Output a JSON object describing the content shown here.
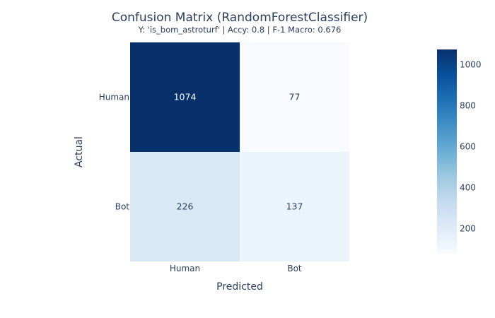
{
  "chart_data": {
    "type": "heatmap",
    "title": "Confusion Matrix (RandomForestClassifier)",
    "subtitle": "Y: 'is_bom_astroturf' | Accy: 0.8 | F-1 Macro: 0.676",
    "xlabel": "Predicted",
    "ylabel": "Actual",
    "x_categories": [
      "Human",
      "Bot"
    ],
    "y_categories": [
      "Human",
      "Bot"
    ],
    "z": [
      [
        1074,
        77
      ],
      [
        226,
        137
      ]
    ],
    "colorscale": "Blues",
    "colorbar": {
      "range": [
        77,
        1074
      ],
      "ticks": [
        200,
        400,
        600,
        800,
        1000
      ],
      "tick_labels": [
        "200",
        "400",
        "600",
        "800",
        "1000"
      ]
    }
  }
}
